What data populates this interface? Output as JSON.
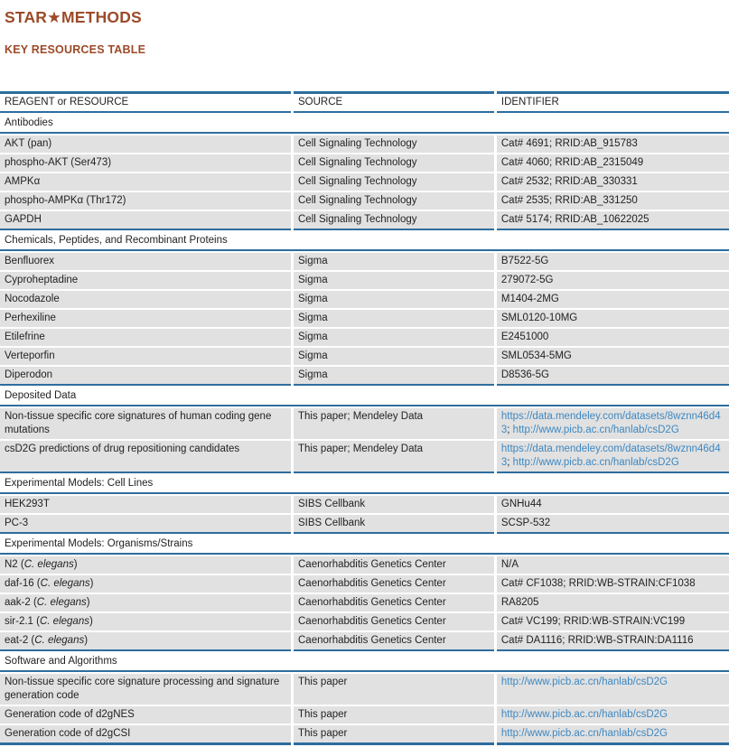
{
  "page": {
    "title": "STAR★METHODS",
    "subtitle": "KEY RESOURCES TABLE"
  },
  "colors": {
    "heading_rust": "#9c4a28",
    "rule_blue": "#2e6d9e",
    "link_blue": "#3e88c2",
    "row_gray": "#e1e1e1"
  },
  "table": {
    "columns": [
      "REAGENT or RESOURCE",
      "SOURCE",
      "IDENTIFIER"
    ],
    "sections": [
      {
        "label": "Antibodies",
        "rows": [
          {
            "cells": [
              "AKT (pan)",
              "Cell Signaling Technology",
              "Cat# 4691; RRID:AB_915783"
            ]
          },
          {
            "cells": [
              "phospho-AKT (Ser473)",
              "Cell Signaling Technology",
              "Cat# 4060; RRID:AB_2315049"
            ]
          },
          {
            "cells": [
              "AMPKα",
              "Cell Signaling Technology",
              "Cat# 2532; RRID:AB_330331"
            ]
          },
          {
            "cells": [
              "phospho-AMPKα (Thr172)",
              "Cell Signaling Technology",
              "Cat# 2535; RRID:AB_331250"
            ]
          },
          {
            "cells": [
              "GAPDH",
              "Cell Signaling Technology",
              "Cat# 5174; RRID:AB_10622025"
            ]
          }
        ]
      },
      {
        "label": "Chemicals, Peptides, and Recombinant Proteins",
        "rows": [
          {
            "cells": [
              "Benfluorex",
              "Sigma",
              "B7522-5G"
            ]
          },
          {
            "cells": [
              "Cyproheptadine",
              "Sigma",
              "279072-5G"
            ]
          },
          {
            "cells": [
              "Nocodazole",
              "Sigma",
              "M1404-2MG"
            ]
          },
          {
            "cells": [
              "Perhexiline",
              "Sigma",
              "SML0120-10MG"
            ]
          },
          {
            "cells": [
              "Etilefrine",
              "Sigma",
              "E2451000"
            ]
          },
          {
            "cells": [
              "Verteporfin",
              "Sigma",
              "SML0534-5MG"
            ]
          },
          {
            "cells": [
              "Diperodon",
              "Sigma",
              "D8536-5G"
            ]
          }
        ]
      },
      {
        "label": "Deposited Data",
        "rows": [
          {
            "cells": [
              "Non-tissue specific core signatures of human coding gene mutations",
              "This paper; Mendeley Data",
              [
                {
                  "t": "https://data.mendeley.com/datasets/8wznn46d43",
                  "s": "link"
                },
                {
                  "t": "; ",
                  "s": "plain"
                },
                {
                  "t": "http://www.picb.ac.cn/hanlab/csD2G",
                  "s": "link"
                }
              ]
            ]
          },
          {
            "cells": [
              "csD2G predictions of drug repositioning candidates",
              "This paper; Mendeley Data",
              [
                {
                  "t": "https://data.mendeley.com/datasets/8wznn46d43",
                  "s": "link"
                },
                {
                  "t": "; ",
                  "s": "plain"
                },
                {
                  "t": "http://www.picb.ac.cn/hanlab/csD2G",
                  "s": "link"
                }
              ]
            ]
          }
        ]
      },
      {
        "label": "Experimental Models: Cell Lines",
        "rows": [
          {
            "cells": [
              "HEK293T",
              "SIBS Cellbank",
              "GNHu44"
            ]
          },
          {
            "cells": [
              "PC-3",
              "SIBS Cellbank",
              "SCSP-532"
            ]
          }
        ]
      },
      {
        "label": "Experimental Models: Organisms/Strains",
        "rows": [
          {
            "cells": [
              [
                {
                  "t": "N2 (",
                  "s": "plain"
                },
                {
                  "t": "C. elegans",
                  "s": "italic"
                },
                {
                  "t": ")",
                  "s": "plain"
                }
              ],
              "Caenorhabditis Genetics Center",
              "N/A"
            ]
          },
          {
            "cells": [
              [
                {
                  "t": "daf-16 (",
                  "s": "plain"
                },
                {
                  "t": "C. elegans",
                  "s": "italic"
                },
                {
                  "t": ")",
                  "s": "plain"
                }
              ],
              "Caenorhabditis Genetics Center",
              "Cat# CF1038; RRID:WB-STRAIN:CF1038"
            ]
          },
          {
            "cells": [
              [
                {
                  "t": "aak-2 (",
                  "s": "plain"
                },
                {
                  "t": "C. elegans",
                  "s": "italic"
                },
                {
                  "t": ")",
                  "s": "plain"
                }
              ],
              "Caenorhabditis Genetics Center",
              "RA8205"
            ]
          },
          {
            "cells": [
              [
                {
                  "t": "sir-2.1 (",
                  "s": "plain"
                },
                {
                  "t": "C. elegans",
                  "s": "italic"
                },
                {
                  "t": ")",
                  "s": "plain"
                }
              ],
              "Caenorhabditis Genetics Center",
              "Cat# VC199; RRID:WB-STRAIN:VC199"
            ]
          },
          {
            "cells": [
              [
                {
                  "t": "eat-2 (",
                  "s": "plain"
                },
                {
                  "t": "C. elegans",
                  "s": "italic"
                },
                {
                  "t": ")",
                  "s": "plain"
                }
              ],
              "Caenorhabditis Genetics Center",
              "Cat# DA1116; RRID:WB-STRAIN:DA1116"
            ]
          }
        ]
      },
      {
        "label": "Software and Algorithms",
        "rows": [
          {
            "cells": [
              "Non-tissue specific core signature processing and signature generation code",
              "This paper",
              [
                {
                  "t": "http://www.picb.ac.cn/hanlab/csD2G",
                  "s": "link"
                }
              ]
            ]
          },
          {
            "cells": [
              "Generation code of d2gNES",
              "This paper",
              [
                {
                  "t": "http://www.picb.ac.cn/hanlab/csD2G",
                  "s": "link"
                }
              ]
            ]
          },
          {
            "cells": [
              "Generation code of d2gCSI",
              "This paper",
              [
                {
                  "t": "http://www.picb.ac.cn/hanlab/csD2G",
                  "s": "link"
                }
              ]
            ]
          }
        ]
      }
    ]
  }
}
